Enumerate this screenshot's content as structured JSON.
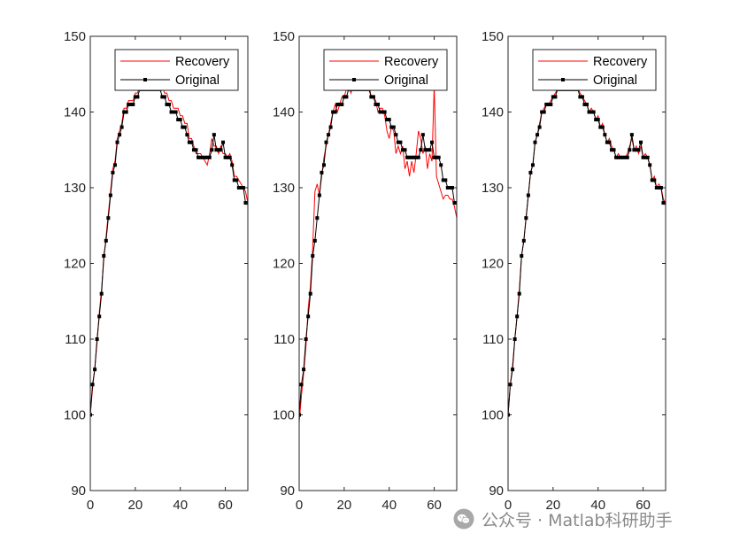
{
  "watermark": {
    "text": "公众号 · Matlab科研助手",
    "icon": "wechat-icon"
  },
  "chart_data": [
    {
      "type": "line",
      "title": "",
      "xlabel": "",
      "ylabel": "",
      "xlim": [
        0,
        70
      ],
      "ylim": [
        90,
        150
      ],
      "xticks": [
        0,
        20,
        40,
        60
      ],
      "yticks": [
        90,
        100,
        110,
        120,
        130,
        140,
        150
      ],
      "grid": false,
      "legend_position": "top-right",
      "legend": [
        "Recovery",
        "Original"
      ],
      "series": [
        {
          "name": "Recovery",
          "color": "#ff0000",
          "marker": "none",
          "x": [
            0,
            1,
            2,
            3,
            4,
            5,
            6,
            7,
            8,
            9,
            10,
            11,
            12,
            13,
            14,
            15,
            16,
            17,
            18,
            19,
            20,
            21,
            22,
            23,
            24,
            25,
            26,
            27,
            28,
            29,
            30,
            31,
            32,
            33,
            34,
            35,
            36,
            37,
            38,
            39,
            40,
            41,
            42,
            43,
            44,
            45,
            46,
            47,
            48,
            49,
            50,
            51,
            52,
            53,
            54,
            55,
            56,
            57,
            58,
            59,
            60,
            61,
            62,
            63,
            64,
            65,
            66,
            67,
            68,
            69,
            70
          ],
          "y": [
            100,
            103.5,
            106.2,
            109.5,
            113.5,
            116.5,
            120.5,
            123.5,
            126.5,
            129.5,
            132.5,
            133.5,
            136.5,
            137.5,
            138.5,
            140.5,
            140.5,
            141.5,
            141.5,
            141.5,
            142.5,
            142.5,
            143.5,
            143.5,
            143.5,
            143.5,
            143.5,
            143.5,
            143.5,
            143.5,
            143.5,
            143.5,
            143.5,
            142.5,
            142.5,
            141.5,
            141.5,
            140.5,
            140.5,
            140.5,
            139.5,
            139.5,
            138.5,
            138.5,
            136.5,
            136.5,
            135.5,
            134.5,
            134.5,
            134.5,
            134,
            133.5,
            133,
            134.5,
            136.5,
            135.5,
            135.5,
            134.5,
            135.5,
            134.5,
            134.5,
            134,
            134.5,
            133.5,
            131.5,
            131.5,
            131,
            130.5,
            130,
            129.5,
            128
          ]
        },
        {
          "name": "Original",
          "color": "#000000",
          "marker": "square",
          "x": [
            0,
            1,
            2,
            3,
            4,
            5,
            6,
            7,
            8,
            9,
            10,
            11,
            12,
            13,
            14,
            15,
            16,
            17,
            18,
            19,
            20,
            21,
            22,
            23,
            24,
            25,
            26,
            27,
            28,
            29,
            30,
            31,
            32,
            33,
            34,
            35,
            36,
            37,
            38,
            39,
            40,
            41,
            42,
            43,
            44,
            45,
            46,
            47,
            48,
            49,
            50,
            51,
            52,
            53,
            54,
            55,
            56,
            57,
            58,
            59,
            60,
            61,
            62,
            63,
            64,
            65,
            66,
            67,
            68,
            69,
            70
          ],
          "y": [
            100,
            104,
            106,
            110,
            113,
            116,
            121,
            123,
            126,
            129,
            132,
            133,
            136,
            137,
            138,
            140,
            140,
            141,
            141,
            141,
            142,
            142,
            143,
            143,
            143,
            143,
            143,
            143,
            143,
            143,
            143,
            143,
            142,
            142,
            141,
            141,
            140,
            140,
            140,
            139,
            139,
            138,
            138,
            137,
            136,
            136,
            135,
            135,
            134,
            134,
            134,
            134,
            134,
            134,
            135,
            137,
            135,
            135,
            135,
            136,
            134,
            134,
            134,
            133,
            131,
            131,
            130,
            130,
            130,
            128,
            128
          ]
        }
      ]
    },
    {
      "type": "line",
      "title": "",
      "xlabel": "",
      "ylabel": "",
      "xlim": [
        0,
        70
      ],
      "ylim": [
        90,
        150
      ],
      "xticks": [
        0,
        20,
        40,
        60
      ],
      "yticks": [
        90,
        100,
        110,
        120,
        130,
        140,
        150
      ],
      "grid": false,
      "legend_position": "top-right",
      "legend": [
        "Recovery",
        "Original"
      ],
      "series": [
        {
          "name": "Recovery",
          "color": "#ff0000",
          "marker": "none",
          "x": [
            0,
            1,
            2,
            3,
            4,
            5,
            6,
            7,
            8,
            9,
            10,
            11,
            12,
            13,
            14,
            15,
            16,
            17,
            18,
            19,
            20,
            21,
            22,
            23,
            24,
            25,
            26,
            27,
            28,
            29,
            30,
            31,
            32,
            33,
            34,
            35,
            36,
            37,
            38,
            39,
            40,
            41,
            42,
            43,
            44,
            45,
            46,
            47,
            48,
            49,
            50,
            51,
            52,
            53,
            54,
            55,
            56,
            57,
            58,
            59,
            60,
            61,
            62,
            63,
            64,
            65,
            66,
            67,
            68,
            69,
            70
          ],
          "y": [
            99,
            102.5,
            105.5,
            109,
            114,
            117,
            122,
            129.5,
            130.5,
            129,
            131.5,
            134,
            135.5,
            137,
            138.5,
            140,
            141,
            140,
            141,
            142,
            142,
            143,
            143.5,
            142.5,
            143.5,
            143.5,
            143,
            143.5,
            143.5,
            143.5,
            144,
            143.5,
            142,
            142,
            141.5,
            140,
            140.5,
            140.5,
            139.5,
            137.5,
            136.5,
            138,
            137.5,
            134.5,
            135.5,
            134.5,
            135.5,
            132.5,
            133.5,
            131.5,
            133.5,
            132,
            134.5,
            137.5,
            136.5,
            134.5,
            135.5,
            132.5,
            134.5,
            133.5,
            143.5,
            131.5,
            130.5,
            129.5,
            128.5,
            129,
            129,
            128.5,
            128.5,
            127.5,
            126
          ]
        },
        {
          "name": "Original",
          "color": "#000000",
          "marker": "square",
          "x": [
            0,
            1,
            2,
            3,
            4,
            5,
            6,
            7,
            8,
            9,
            10,
            11,
            12,
            13,
            14,
            15,
            16,
            17,
            18,
            19,
            20,
            21,
            22,
            23,
            24,
            25,
            26,
            27,
            28,
            29,
            30,
            31,
            32,
            33,
            34,
            35,
            36,
            37,
            38,
            39,
            40,
            41,
            42,
            43,
            44,
            45,
            46,
            47,
            48,
            49,
            50,
            51,
            52,
            53,
            54,
            55,
            56,
            57,
            58,
            59,
            60,
            61,
            62,
            63,
            64,
            65,
            66,
            67,
            68,
            69,
            70
          ],
          "y": [
            100,
            104,
            106,
            110,
            113,
            116,
            121,
            123,
            126,
            129,
            132,
            133,
            136,
            137,
            138,
            140,
            140,
            141,
            141,
            141,
            142,
            142,
            143,
            143,
            143,
            143,
            143,
            143,
            143,
            143,
            143,
            143,
            142,
            142,
            141,
            141,
            140,
            140,
            140,
            139,
            139,
            138,
            138,
            137,
            136,
            136,
            135,
            135,
            134,
            134,
            134,
            134,
            134,
            134,
            135,
            137,
            135,
            135,
            135,
            136,
            134,
            134,
            134,
            133,
            131,
            131,
            130,
            130,
            130,
            128,
            128
          ]
        }
      ]
    },
    {
      "type": "line",
      "title": "",
      "xlabel": "",
      "ylabel": "",
      "xlim": [
        0,
        70
      ],
      "ylim": [
        90,
        150
      ],
      "xticks": [
        0,
        20,
        40,
        60
      ],
      "yticks": [
        90,
        100,
        110,
        120,
        130,
        140,
        150
      ],
      "grid": false,
      "legend_position": "top-right",
      "legend": [
        "Recovery",
        "Original"
      ],
      "series": [
        {
          "name": "Recovery",
          "color": "#ff0000",
          "marker": "none",
          "x": [
            0,
            1,
            2,
            3,
            4,
            5,
            6,
            7,
            8,
            9,
            10,
            11,
            12,
            13,
            14,
            15,
            16,
            17,
            18,
            19,
            20,
            21,
            22,
            23,
            24,
            25,
            26,
            27,
            28,
            29,
            30,
            31,
            32,
            33,
            34,
            35,
            36,
            37,
            38,
            39,
            40,
            41,
            42,
            43,
            44,
            45,
            46,
            47,
            48,
            49,
            50,
            51,
            52,
            53,
            54,
            55,
            56,
            57,
            58,
            59,
            60,
            61,
            62,
            63,
            64,
            65,
            66,
            67,
            68,
            69,
            70
          ],
          "y": [
            100,
            104,
            106.5,
            110,
            113,
            116.5,
            121,
            123,
            126,
            129,
            132,
            133,
            136,
            137,
            138.5,
            140,
            140.5,
            141,
            141,
            141.5,
            142,
            142.5,
            143,
            143.5,
            143,
            143.5,
            143.5,
            143,
            143.5,
            143.5,
            143.5,
            143,
            142.5,
            142,
            141.5,
            141,
            140,
            140.5,
            140,
            139,
            139.5,
            138,
            138.5,
            137,
            136,
            136.5,
            135.5,
            135,
            134,
            134.5,
            134,
            134,
            134,
            134.5,
            135.5,
            136.5,
            135,
            135.5,
            134.5,
            135.5,
            134,
            134.5,
            134,
            133,
            131,
            131.5,
            130,
            130.5,
            130,
            128.5,
            128
          ]
        },
        {
          "name": "Original",
          "color": "#000000",
          "marker": "square",
          "x": [
            0,
            1,
            2,
            3,
            4,
            5,
            6,
            7,
            8,
            9,
            10,
            11,
            12,
            13,
            14,
            15,
            16,
            17,
            18,
            19,
            20,
            21,
            22,
            23,
            24,
            25,
            26,
            27,
            28,
            29,
            30,
            31,
            32,
            33,
            34,
            35,
            36,
            37,
            38,
            39,
            40,
            41,
            42,
            43,
            44,
            45,
            46,
            47,
            48,
            49,
            50,
            51,
            52,
            53,
            54,
            55,
            56,
            57,
            58,
            59,
            60,
            61,
            62,
            63,
            64,
            65,
            66,
            67,
            68,
            69,
            70
          ],
          "y": [
            100,
            104,
            106,
            110,
            113,
            116,
            121,
            123,
            126,
            129,
            132,
            133,
            136,
            137,
            138,
            140,
            140,
            141,
            141,
            141,
            142,
            142,
            143,
            143,
            143,
            143,
            143,
            143,
            143,
            143,
            143,
            143,
            142,
            142,
            141,
            141,
            140,
            140,
            140,
            139,
            139,
            138,
            138,
            137,
            136,
            136,
            135,
            135,
            134,
            134,
            134,
            134,
            134,
            134,
            135,
            137,
            135,
            135,
            135,
            136,
            134,
            134,
            134,
            133,
            131,
            131,
            130,
            130,
            130,
            128,
            128
          ]
        }
      ]
    }
  ]
}
